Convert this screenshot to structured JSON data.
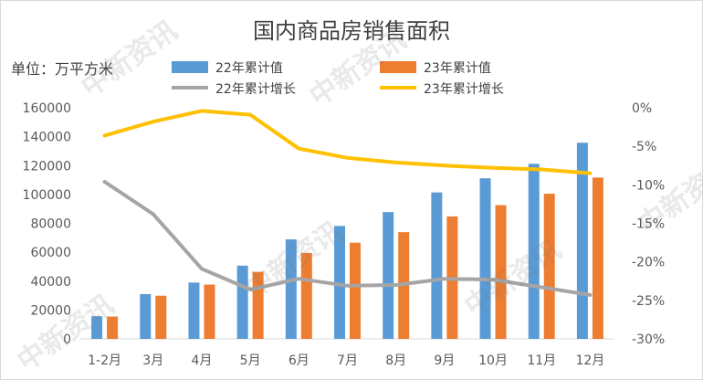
{
  "chart_data": {
    "type": "bar",
    "title": "国内商品房销售面积",
    "unit_label": "单位：万平方米",
    "categories": [
      "1-2月",
      "3月",
      "4月",
      "5月",
      "6月",
      "7月",
      "8月",
      "9月",
      "10月",
      "11月",
      "12月"
    ],
    "series": [
      {
        "name": "22年累计值",
        "kind": "bar",
        "axis": "left",
        "color": "#5b9bd5",
        "values": [
          15700,
          31000,
          39000,
          50700,
          68900,
          78200,
          87800,
          101400,
          111200,
          121200,
          135800
        ]
      },
      {
        "name": "23年累计值",
        "kind": "bar",
        "axis": "left",
        "color": "#ed7d31",
        "values": [
          15500,
          29900,
          37600,
          46400,
          59500,
          66600,
          73900,
          84800,
          92600,
          100500,
          111700
        ]
      },
      {
        "name": "22年累计增长",
        "kind": "line",
        "axis": "right",
        "color": "#a5a5a5",
        "values": [
          -9.6,
          -13.8,
          -20.9,
          -23.6,
          -22.2,
          -23.1,
          -23.0,
          -22.2,
          -22.3,
          -23.3,
          -24.3
        ]
      },
      {
        "name": "23年累计增长",
        "kind": "line",
        "axis": "right",
        "color": "#ffc000",
        "values": [
          -3.6,
          -1.8,
          -0.4,
          -0.9,
          -5.3,
          -6.5,
          -7.1,
          -7.5,
          -7.8,
          -8.0,
          -8.5
        ]
      }
    ],
    "y_left": {
      "min": 0,
      "max": 160000,
      "ticks": [
        "0",
        "20000",
        "40000",
        "60000",
        "80000",
        "100000",
        "120000",
        "140000",
        "160000"
      ]
    },
    "y_right": {
      "min": -30,
      "max": 0,
      "ticks": [
        "0%",
        "-5%",
        "-10%",
        "-15%",
        "-20%",
        "-25%",
        "-30%"
      ]
    },
    "grid": false,
    "legend_position": "top"
  },
  "watermark": "中新资讯"
}
